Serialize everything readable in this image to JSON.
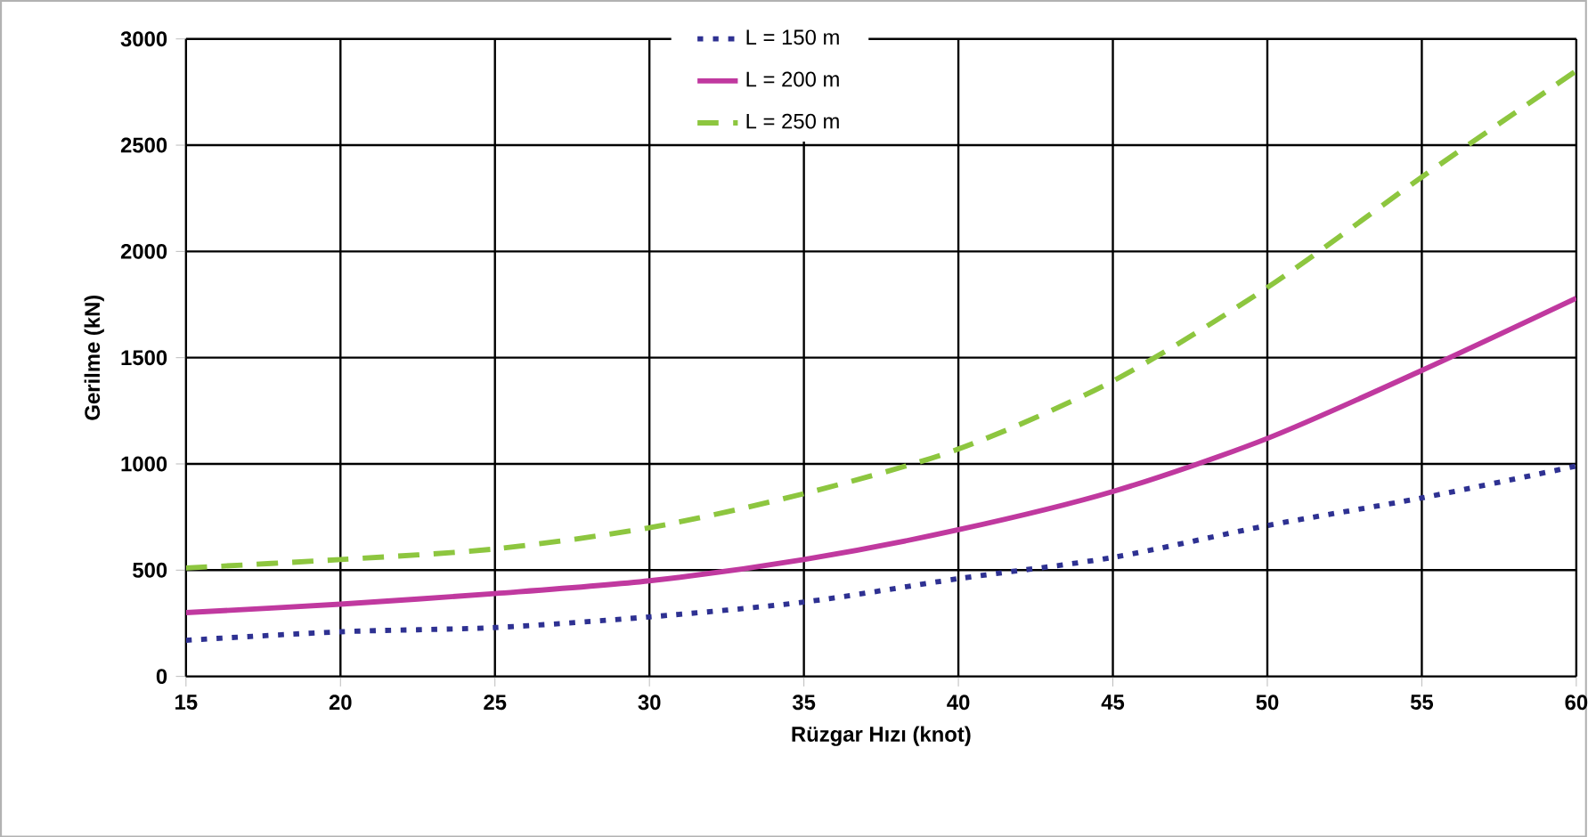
{
  "chart_data": {
    "type": "line",
    "xlabel": "Rüzgar Hızı (knot)",
    "ylabel": "Gerilme (kN)",
    "x": [
      15,
      20,
      25,
      30,
      35,
      40,
      45,
      50,
      55,
      60
    ],
    "series": [
      {
        "name": "L = 150 m",
        "color": "#2e3192",
        "line_style": "dotted",
        "values": [
          170,
          210,
          230,
          280,
          350,
          460,
          560,
          710,
          840,
          990
        ]
      },
      {
        "name": "L = 200 m",
        "color": "#c0399f",
        "line_style": "solid",
        "values": [
          300,
          340,
          390,
          450,
          550,
          690,
          870,
          1120,
          1440,
          1780
        ]
      },
      {
        "name": "L = 250 m",
        "color": "#8dc63f",
        "line_style": "dashed",
        "values": [
          510,
          550,
          600,
          700,
          860,
          1070,
          1390,
          1830,
          2350,
          2850
        ]
      }
    ],
    "xlim": [
      15,
      60
    ],
    "ylim": [
      0,
      3000
    ],
    "xticks": [
      15,
      20,
      25,
      30,
      35,
      40,
      45,
      50,
      55,
      60
    ],
    "yticks": [
      0,
      500,
      1000,
      1500,
      2000,
      2500,
      3000
    ],
    "grid": true,
    "legend": "top",
    "marker": "none"
  }
}
